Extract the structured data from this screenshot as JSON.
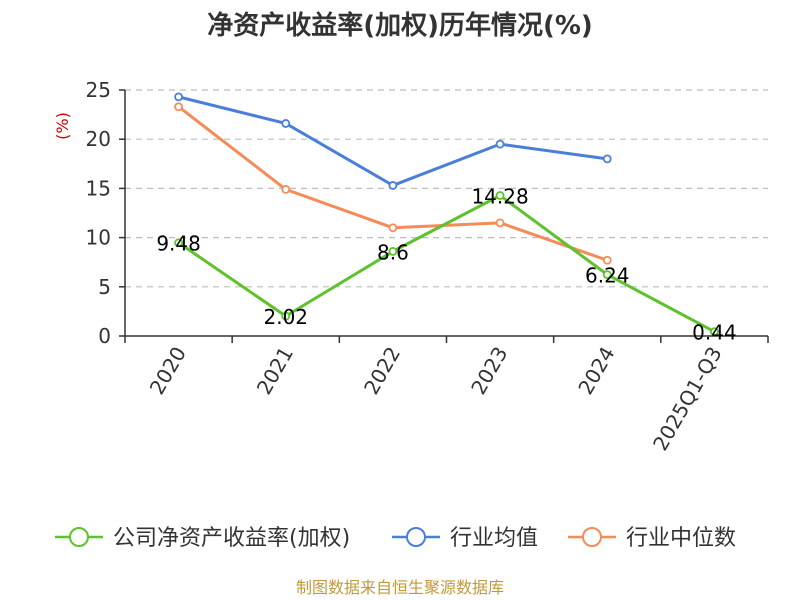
{
  "chart_data": {
    "type": "line",
    "title": "净资产收益率(加权)历年情况(%)",
    "ylabel": "(%)",
    "xlabel": "",
    "categories": [
      "2020",
      "2021",
      "2022",
      "2023",
      "2024",
      "2025Q1-Q3"
    ],
    "ylim": [
      0,
      25
    ],
    "yticks": [
      0,
      5,
      10,
      15,
      20,
      25
    ],
    "grid": true,
    "legend_position": "bottom",
    "series": [
      {
        "name": "公司净资产收益率(加权)",
        "color": "#5ec22d",
        "values": [
          9.48,
          2.02,
          8.6,
          14.28,
          6.24,
          0.44
        ],
        "labels": [
          "9.48",
          "2.02",
          "8.6",
          "14.28",
          "6.24",
          "0.44"
        ]
      },
      {
        "name": "行业均值",
        "color": "#4a7fd9",
        "values": [
          24.3,
          21.6,
          15.3,
          19.5,
          18.0,
          null
        ]
      },
      {
        "name": "行业中位数",
        "color": "#f58b57",
        "values": [
          23.3,
          14.9,
          11.0,
          11.5,
          7.7,
          null
        ]
      }
    ],
    "source": "制图数据来自恒生聚源数据库"
  }
}
